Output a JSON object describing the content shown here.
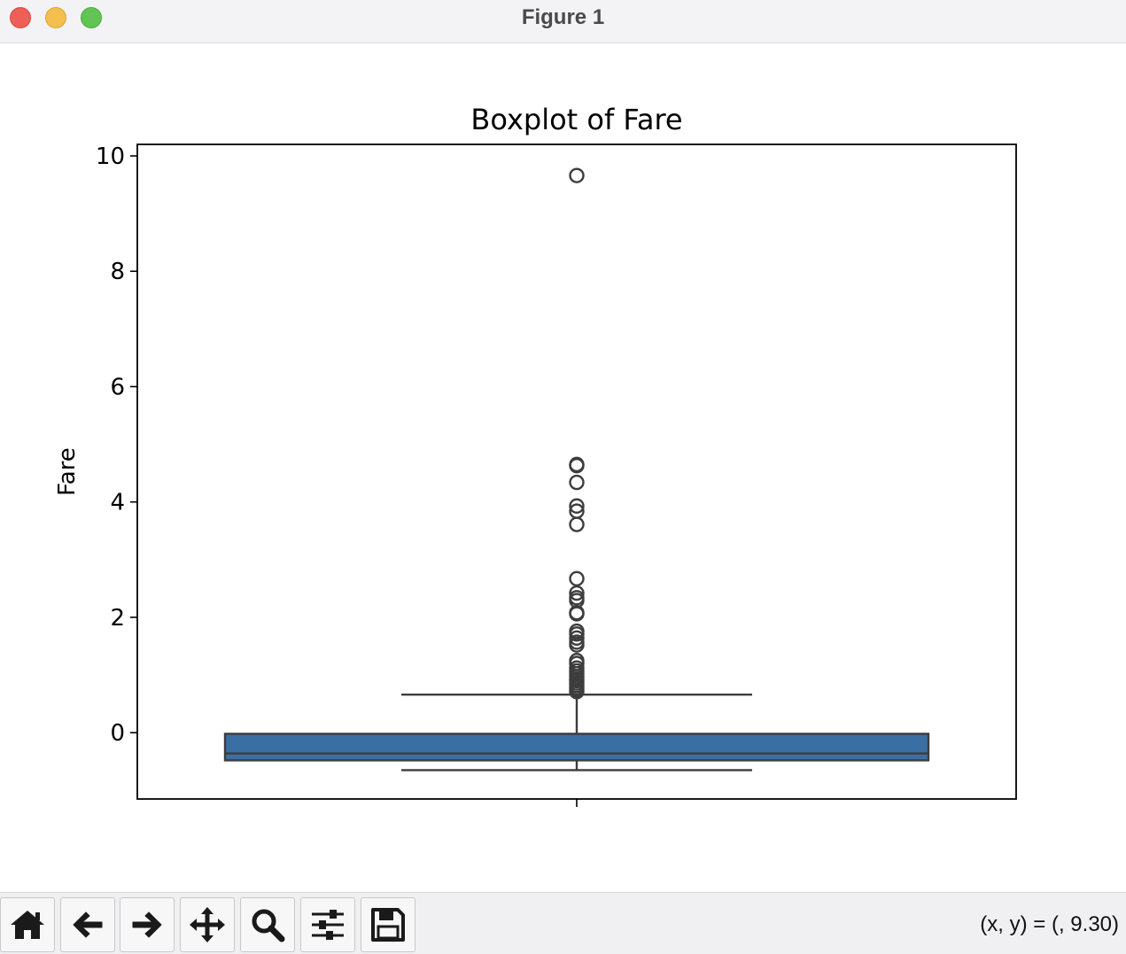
{
  "window": {
    "title": "Figure 1"
  },
  "toolbar": {
    "buttons": [
      {
        "name": "home-button",
        "icon": "home-icon"
      },
      {
        "name": "back-button",
        "icon": "arrow-left-icon"
      },
      {
        "name": "forward-button",
        "icon": "arrow-right-icon"
      },
      {
        "name": "pan-button",
        "icon": "move-icon"
      },
      {
        "name": "zoom-button",
        "icon": "magnifier-icon"
      },
      {
        "name": "configure-subplots-button",
        "icon": "sliders-icon"
      },
      {
        "name": "save-button",
        "icon": "floppy-disk-icon"
      }
    ],
    "coords_text": "(x, y) = (, 9.30)"
  },
  "colors": {
    "box_fill": "#3a6fa3",
    "box_edge": "#3d3d3d",
    "axes_edge": "#000000"
  },
  "chart_data": {
    "type": "box",
    "title": "Boxplot of Fare",
    "ylabel": "Fare",
    "xlabel": "",
    "ylim": [
      -1.15,
      10.2
    ],
    "yticks": [
      0,
      2,
      4,
      6,
      8,
      10
    ],
    "ytick_labels": [
      "0",
      "2",
      "4",
      "6",
      "8",
      "10"
    ],
    "xticks": [
      ""
    ],
    "box": {
      "whisker_low": -0.65,
      "q1": -0.48,
      "median": -0.36,
      "q3": -0.02,
      "whisker_high": 0.66
    },
    "outliers": [
      9.66,
      4.65,
      4.63,
      4.34,
      3.93,
      3.84,
      3.61,
      2.67,
      2.42,
      2.34,
      2.29,
      2.08,
      2.06,
      1.76,
      1.71,
      1.64,
      1.57,
      1.52,
      1.25,
      1.2,
      1.12,
      1.07,
      1.02,
      0.97,
      0.93,
      0.9,
      0.86,
      0.82,
      0.78,
      0.74,
      0.71
    ]
  }
}
